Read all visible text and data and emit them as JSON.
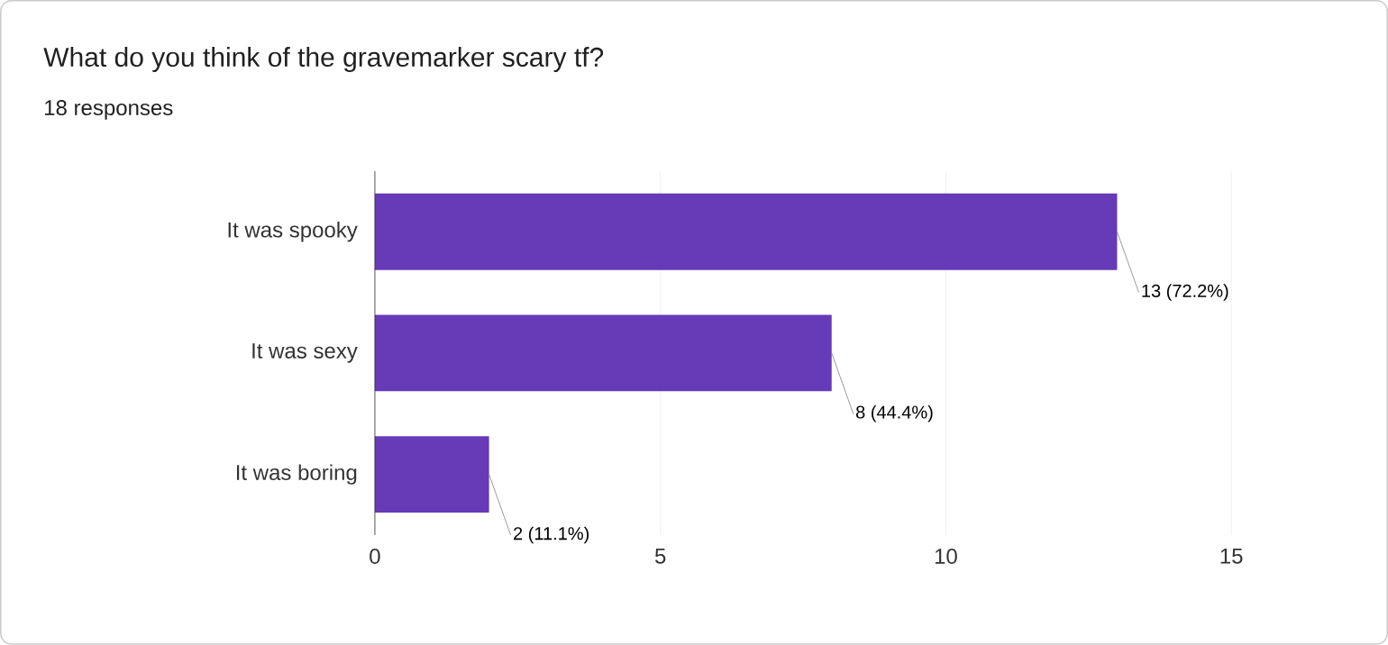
{
  "chart_data": {
    "type": "bar",
    "orientation": "horizontal",
    "title": "What do you think of the gravemarker scary tf?",
    "subtitle": "18 responses",
    "categories": [
      "It was spooky",
      "It was sexy",
      "It was boring"
    ],
    "values": [
      13,
      8,
      2
    ],
    "value_labels": [
      "13 (72.2%)",
      "8 (44.4%)",
      "2 (11.1%)"
    ],
    "color": "#673ab7",
    "xlim": [
      0,
      15
    ],
    "xticks": [
      0,
      5,
      10,
      15
    ],
    "grid": "x"
  }
}
